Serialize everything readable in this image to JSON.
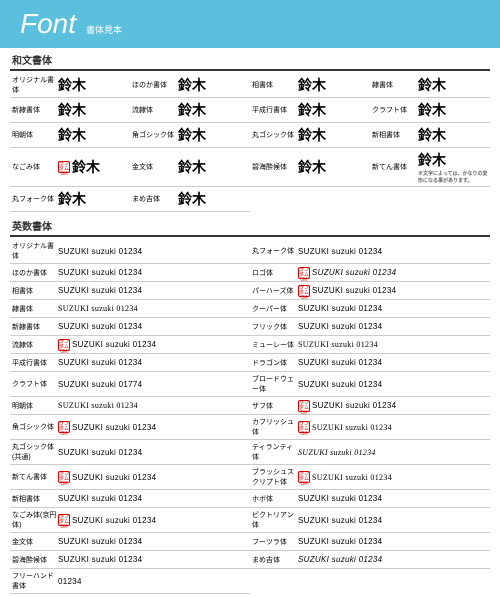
{
  "header": {
    "title": "Font",
    "subtitle": "書体見本"
  },
  "sections": {
    "jp": {
      "title": "和文書体"
    },
    "en": {
      "title": "英数書体"
    }
  },
  "jpFonts": [
    {
      "label": "オリジナル書体",
      "sample": "鈴木"
    },
    {
      "label": "ほのか書体",
      "sample": "鈴木"
    },
    {
      "label": "相書体",
      "sample": "鈴木"
    },
    {
      "label": "隷書体",
      "sample": "鈴木"
    },
    {
      "label": "新隷書体",
      "sample": "鈴木"
    },
    {
      "label": "流隷体",
      "sample": "鈴木"
    },
    {
      "label": "平成行書体",
      "sample": "鈴木"
    },
    {
      "label": "クラフト体",
      "sample": "鈴木"
    },
    {
      "label": "明朝体",
      "sample": "鈴木"
    },
    {
      "label": "角ゴシック体",
      "sample": "鈴木"
    },
    {
      "label": "丸ゴシック体",
      "sample": "鈴木"
    },
    {
      "label": "新相書体",
      "sample": "鈴木"
    },
    {
      "label": "なごみ体",
      "sample": "鈴木",
      "badge": true
    },
    {
      "label": "金文体",
      "sample": "鈴木"
    },
    {
      "label": "碧海酔候体",
      "sample": "鈴木"
    },
    {
      "label": "新てん書体",
      "sample": "鈴木",
      "note": "※文字によっては、かなりの変形になる事があります。"
    },
    {
      "label": "丸フォーク体",
      "sample": "鈴木"
    },
    {
      "label": "まめ吉体",
      "sample": "鈴木"
    }
  ],
  "enFonts": [
    {
      "label": "オリジナル書体",
      "sample": "SUZUKI suzuki 01234"
    },
    {
      "label": "丸フォーク体",
      "sample": "SUZUKI suzuki 01234"
    },
    {
      "label": "ほのか書体",
      "sample": "SUZUKI suzuki 01234"
    },
    {
      "label": "ロゴ体",
      "sample": "SUZUKI suzuki 01234",
      "badge": true,
      "italic": true
    },
    {
      "label": "相書体",
      "sample": "SUZUKI suzuki 01234"
    },
    {
      "label": "パーハーズ体",
      "sample": "SUZUKI suzuki 01234",
      "badge": true
    },
    {
      "label": "隷書体",
      "sample": "SUZUKI suzuki 01234",
      "serif": true
    },
    {
      "label": "クーパー体",
      "sample": "SUZUKI suzuki 01234"
    },
    {
      "label": "新隷書体",
      "sample": "SUZUKI suzuki 01234"
    },
    {
      "label": "フリック体",
      "sample": "SUZUKI suzuki 01234"
    },
    {
      "label": "流隷体",
      "sample": "SUZUKI suzuki 01234",
      "badge": true
    },
    {
      "label": "ミューレー体",
      "sample": "SUZUKI suzuki 01234",
      "cursive": true
    },
    {
      "label": "平成行書体",
      "sample": "SUZUKI suzuki 01234"
    },
    {
      "label": "ドラゴン体",
      "sample": "SUZUKI suzuki 01234"
    },
    {
      "label": "クラフト体",
      "sample": "SUZUKI suzuki 01774"
    },
    {
      "label": "ブロードウェー体",
      "sample": "SUZUKI suzuki 01234"
    },
    {
      "label": "明朝体",
      "sample": "SUZUKI suzuki 01234",
      "serif": true
    },
    {
      "label": "ザフ体",
      "sample": "SUZUKI suzuki 01234",
      "badge": true
    },
    {
      "label": "角ゴシック体",
      "sample": "SUZUKI suzuki 01234",
      "badge": true
    },
    {
      "label": "カフリッシュ体",
      "sample": "SUZUKI suzuki 01234",
      "badge": true,
      "cursive": true
    },
    {
      "label": "丸ゴシック体(共通)",
      "sample": "SUZUKI suzuki 01234"
    },
    {
      "label": "ティランティ体",
      "sample": "SUZUKI suzuki 01234",
      "cursive": true,
      "italic": true
    },
    {
      "label": "新てん書体",
      "sample": "SUZUKI suzuki 01234",
      "badge": true
    },
    {
      "label": "ブラッシュスクリプト体",
      "sample": "SUZUKI suzuki 01234",
      "badge": true,
      "cursive": true
    },
    {
      "label": "新相書体",
      "sample": "SUZUKI suzuki 01234"
    },
    {
      "label": "ホボ体",
      "sample": "SUZUKI suzuki 01234"
    },
    {
      "label": "なごみ体(京円体)",
      "sample": "SUZUKI suzuki 01234",
      "badge": true
    },
    {
      "label": "ビクトリアン体",
      "sample": "SUZUKI suzuki 01234"
    },
    {
      "label": "金文体",
      "sample": "SUZUKI suzuki 01234"
    },
    {
      "label": "フーツラ体",
      "sample": "SUZUKI suzuki 01234"
    },
    {
      "label": "碧海酔候体",
      "sample": "SUZUKI suzuki 01234"
    },
    {
      "label": "まめ吉体",
      "sample": "SUZUKI suzuki 01234",
      "italic": true
    },
    {
      "label": "フリーハンド書体",
      "sample": "01234"
    }
  ],
  "badgeText": "ランダムOK"
}
